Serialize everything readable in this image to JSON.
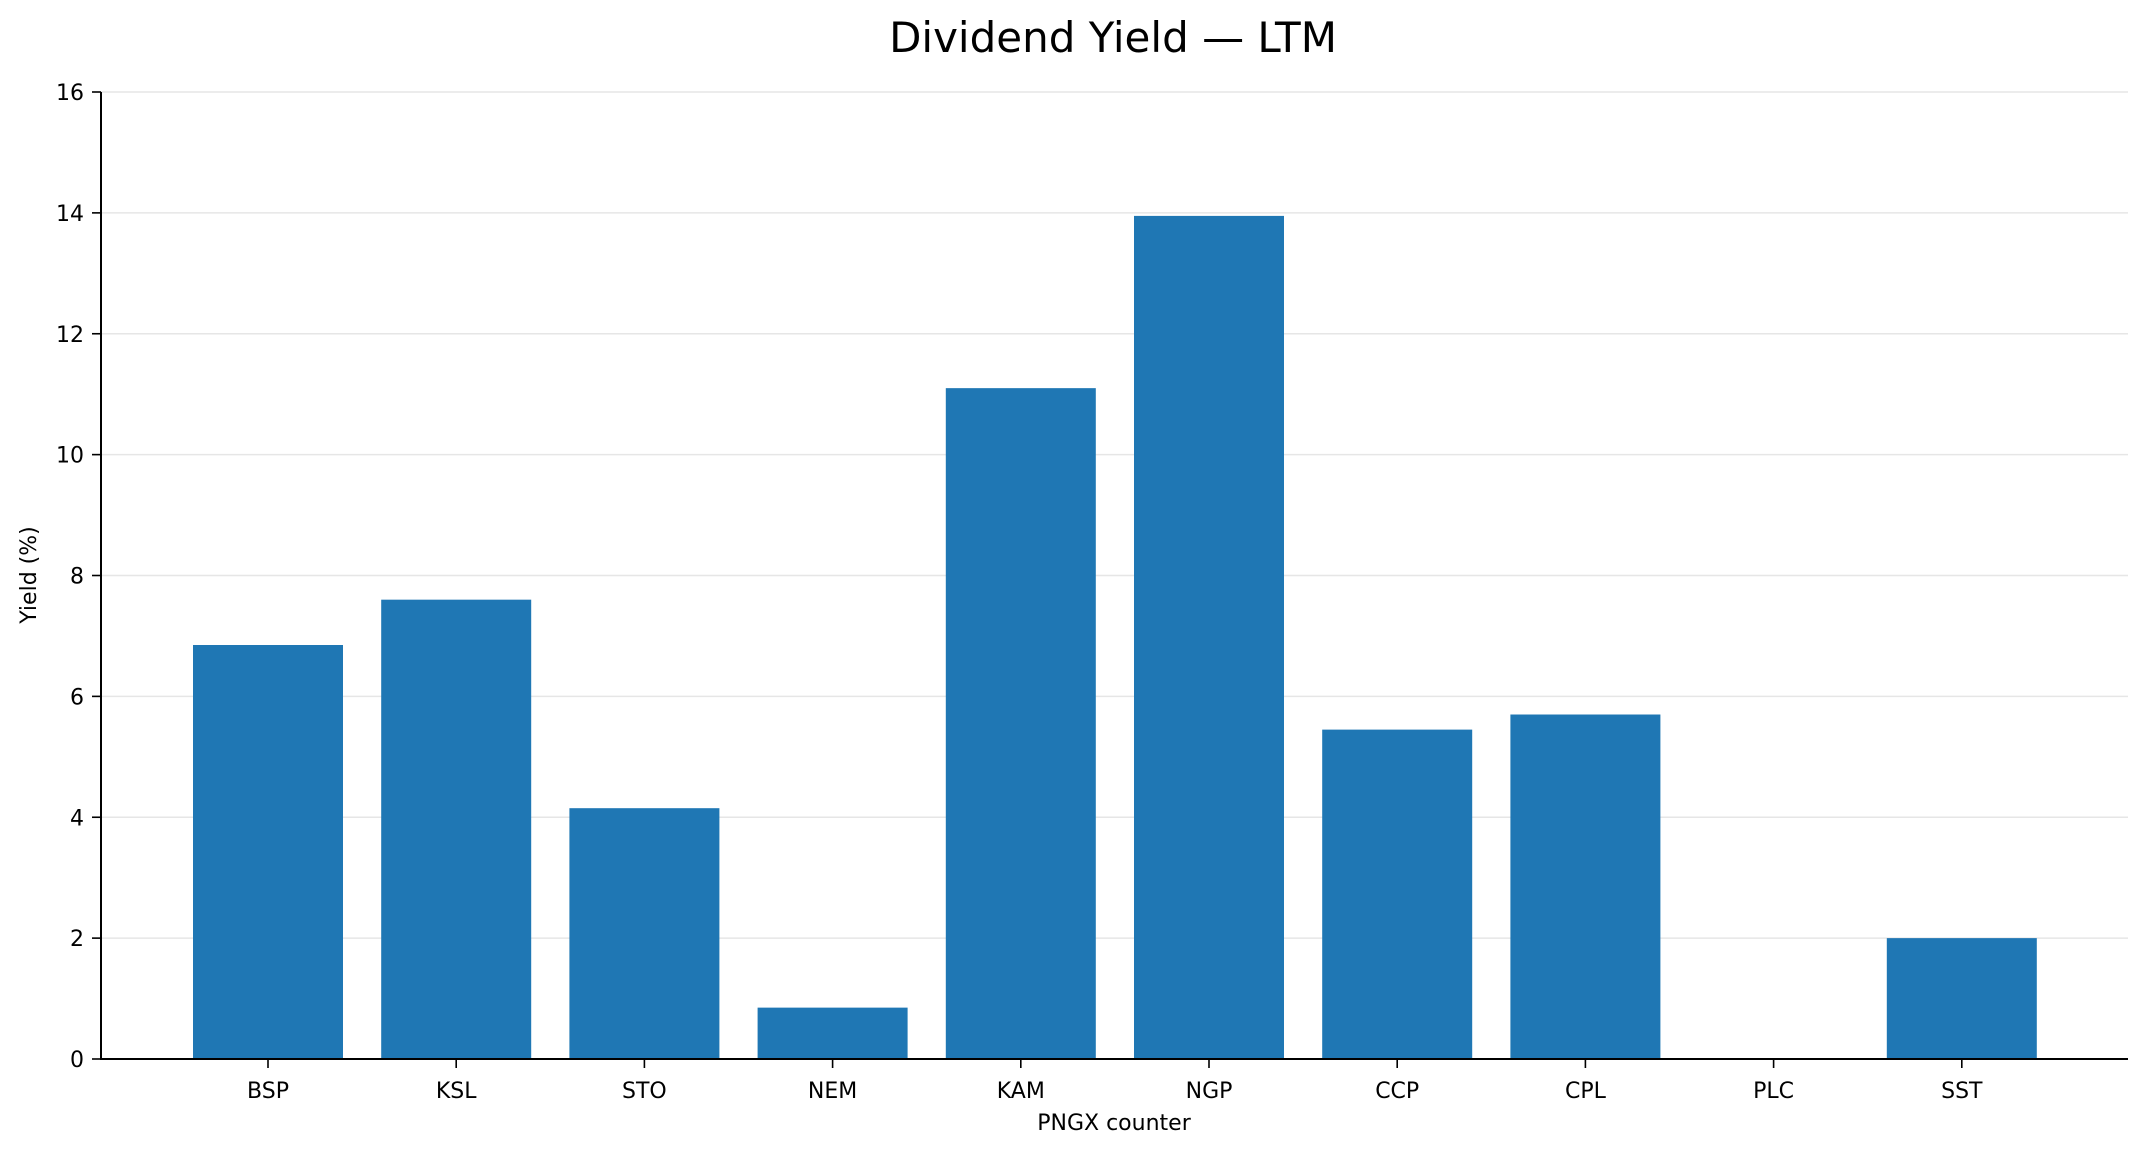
{
  "chart_data": {
    "type": "bar",
    "title": "Dividend Yield — LTM",
    "xlabel": "PNGX counter",
    "ylabel": "Yield (%)",
    "categories": [
      "BSP",
      "KSL",
      "STO",
      "NEM",
      "KAM",
      "NGP",
      "CCP",
      "CPL",
      "PLC",
      "SST"
    ],
    "values": [
      6.85,
      7.6,
      4.15,
      0.85,
      11.1,
      13.95,
      5.45,
      5.7,
      0,
      2.0
    ],
    "ylim": [
      0,
      16
    ],
    "yticks": [
      0,
      2,
      4,
      6,
      8,
      10,
      12,
      14,
      16
    ],
    "grid": "horizontal",
    "bar_color": "#1f77b4",
    "grid_color": "#e6e6e6"
  }
}
